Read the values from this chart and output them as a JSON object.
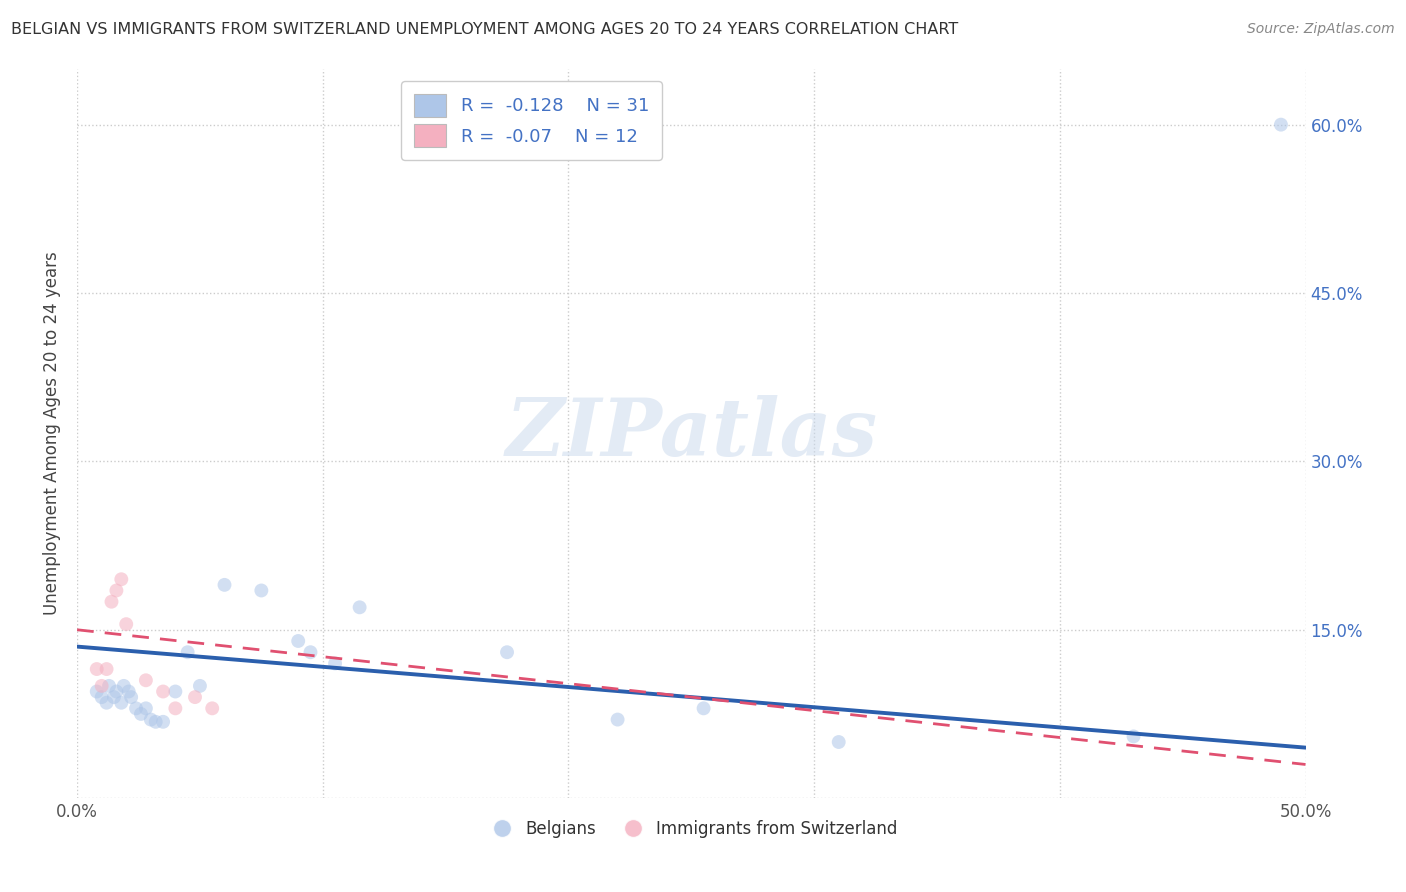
{
  "title": "BELGIAN VS IMMIGRANTS FROM SWITZERLAND UNEMPLOYMENT AMONG AGES 20 TO 24 YEARS CORRELATION CHART",
  "source": "Source: ZipAtlas.com",
  "ylabel": "Unemployment Among Ages 20 to 24 years",
  "xlim": [
    0.0,
    0.5
  ],
  "ylim": [
    0.0,
    0.65
  ],
  "xticks": [
    0.0,
    0.1,
    0.2,
    0.3,
    0.4,
    0.5
  ],
  "yticks": [
    0.0,
    0.15,
    0.3,
    0.45,
    0.6
  ],
  "right_ytick_labels": [
    "",
    "15.0%",
    "30.0%",
    "45.0%",
    "60.0%"
  ],
  "xtick_labels": [
    "0.0%",
    "",
    "",
    "",
    "",
    "50.0%"
  ],
  "watermark": "ZIPatlas",
  "blue_R": -0.128,
  "blue_N": 31,
  "pink_R": -0.07,
  "pink_N": 12,
  "blue_color": "#aec6e8",
  "blue_line_color": "#2b5fad",
  "pink_color": "#f4b0c0",
  "pink_line_color": "#e05070",
  "background_color": "#ffffff",
  "blue_scatter_x": [
    0.008,
    0.01,
    0.012,
    0.013,
    0.015,
    0.016,
    0.018,
    0.019,
    0.021,
    0.022,
    0.024,
    0.026,
    0.028,
    0.03,
    0.032,
    0.035,
    0.04,
    0.045,
    0.05,
    0.06,
    0.075,
    0.09,
    0.095,
    0.105,
    0.115,
    0.175,
    0.22,
    0.255,
    0.31,
    0.43,
    0.49
  ],
  "blue_scatter_y": [
    0.095,
    0.09,
    0.085,
    0.1,
    0.09,
    0.095,
    0.085,
    0.1,
    0.095,
    0.09,
    0.08,
    0.075,
    0.08,
    0.07,
    0.068,
    0.068,
    0.095,
    0.13,
    0.1,
    0.19,
    0.185,
    0.14,
    0.13,
    0.12,
    0.17,
    0.13,
    0.07,
    0.08,
    0.05,
    0.055,
    0.6
  ],
  "pink_scatter_x": [
    0.008,
    0.01,
    0.012,
    0.014,
    0.016,
    0.018,
    0.02,
    0.028,
    0.035,
    0.04,
    0.048,
    0.055
  ],
  "pink_scatter_y": [
    0.115,
    0.1,
    0.115,
    0.175,
    0.185,
    0.195,
    0.155,
    0.105,
    0.095,
    0.08,
    0.09,
    0.08
  ],
  "grid_color": "#cccccc",
  "dot_size": 100,
  "dot_alpha": 0.55,
  "blue_trend_x": [
    0.0,
    0.5
  ],
  "blue_trend_y": [
    0.135,
    0.045
  ],
  "pink_trend_x": [
    0.0,
    0.5
  ],
  "pink_trend_y": [
    0.15,
    0.03
  ]
}
